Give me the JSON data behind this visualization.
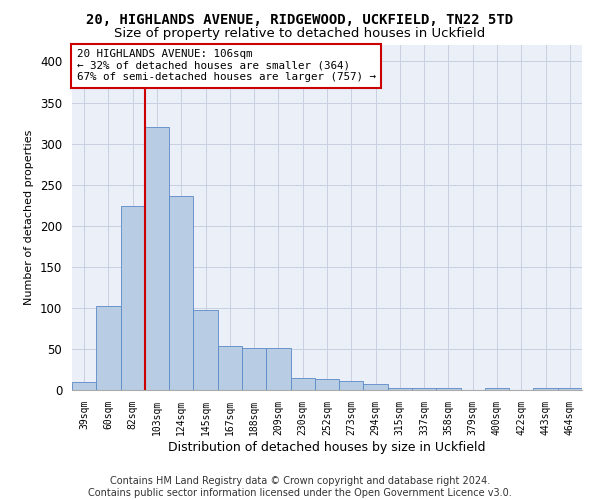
{
  "title": "20, HIGHLANDS AVENUE, RIDGEWOOD, UCKFIELD, TN22 5TD",
  "subtitle": "Size of property relative to detached houses in Uckfield",
  "xlabel": "Distribution of detached houses by size in Uckfield",
  "ylabel": "Number of detached properties",
  "categories": [
    "39sqm",
    "60sqm",
    "82sqm",
    "103sqm",
    "124sqm",
    "145sqm",
    "167sqm",
    "188sqm",
    "209sqm",
    "230sqm",
    "252sqm",
    "273sqm",
    "294sqm",
    "315sqm",
    "337sqm",
    "358sqm",
    "379sqm",
    "400sqm",
    "422sqm",
    "443sqm",
    "464sqm"
  ],
  "values": [
    10,
    102,
    224,
    320,
    236,
    97,
    53,
    51,
    51,
    15,
    14,
    11,
    7,
    3,
    3,
    2,
    0,
    3,
    0,
    3,
    2
  ],
  "bar_color": "#b8cce4",
  "bar_edge_color": "#5a8ac6",
  "vline_x_index": 3,
  "vline_color": "#cc0000",
  "annotation_line1": "20 HIGHLANDS AVENUE: 106sqm",
  "annotation_line2": "← 32% of detached houses are smaller (364)",
  "annotation_line3": "67% of semi-detached houses are larger (757) →",
  "annotation_box_color": "#ffffff",
  "annotation_box_edge": "#cc0000",
  "ylim": [
    0,
    420
  ],
  "yticks": [
    0,
    50,
    100,
    150,
    200,
    250,
    300,
    350,
    400
  ],
  "grid_color": "#c8d0e0",
  "bg_color": "#eaeff8",
  "title_fontsize": 10,
  "subtitle_fontsize": 9.5,
  "footer_text": "Contains HM Land Registry data © Crown copyright and database right 2024.\nContains public sector information licensed under the Open Government Licence v3.0.",
  "footer_fontsize": 7
}
